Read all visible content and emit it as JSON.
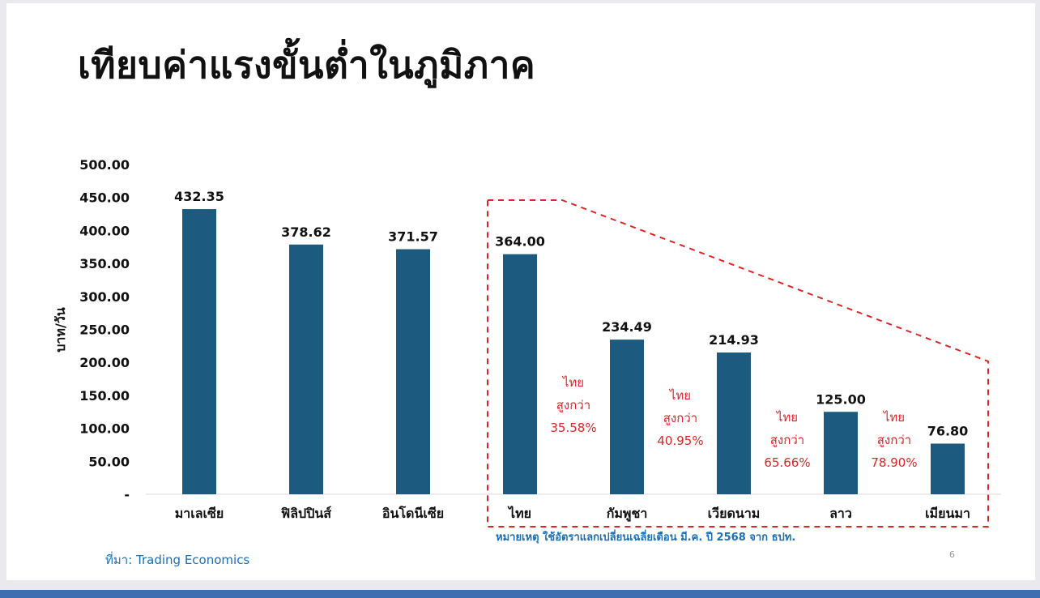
{
  "title": "เทียบค่าแรงขั้นต่ำในภูมิภาค",
  "note": "หมายเหตุ ใช้อัตราแลกเปลี่ยนเฉลี่ยเดือน มี.ค. ปี 2568 จาก ธปท.",
  "source": "ที่มา: Trading Economics",
  "page_number": "6",
  "colors": {
    "bar": "#1c5a80",
    "annotation": "#e02424",
    "note": "#1a6fb6"
  },
  "chart_data": {
    "type": "bar",
    "title": "",
    "xlabel": "",
    "ylabel": "บาท/วัน",
    "ylim": [
      0,
      500
    ],
    "y_ticks": [
      0,
      50,
      100,
      150,
      200,
      250,
      300,
      350,
      400,
      450,
      500
    ],
    "y_tick_labels": [
      "-",
      "50.00",
      "100.00",
      "150.00",
      "200.00",
      "250.00",
      "300.00",
      "350.00",
      "400.00",
      "450.00",
      "500.00"
    ],
    "categories": [
      "มาเลเซีย",
      "ฟิลิปปินส์",
      "อินโดนีเซีย",
      "ไทย",
      "กัมพูชา",
      "เวียดนาม",
      "ลาว",
      "เมียนมา"
    ],
    "values": [
      432.35,
      378.62,
      371.57,
      364.0,
      234.49,
      214.93,
      125.0,
      76.8
    ],
    "value_labels": [
      "432.35",
      "378.62",
      "371.57",
      "364.00",
      "234.49",
      "214.93",
      "125.00",
      "76.80"
    ],
    "grid": false,
    "annotations": [
      {
        "between": [
          "ไทย",
          "กัมพูชา"
        ],
        "lines": [
          "ไทย",
          "สูงกว่า",
          "35.58%"
        ]
      },
      {
        "between": [
          "กัมพูชา",
          "เวียดนาม"
        ],
        "lines": [
          "ไทย",
          "สูงกว่า",
          "40.95%"
        ]
      },
      {
        "between": [
          "เวียดนาม",
          "ลาว"
        ],
        "lines": [
          "ไทย",
          "สูงกว่า",
          "65.66%"
        ]
      },
      {
        "between": [
          "ลาว",
          "เมียนมา"
        ],
        "lines": [
          "ไทย",
          "สูงกว่า",
          "78.90%"
        ]
      }
    ]
  }
}
